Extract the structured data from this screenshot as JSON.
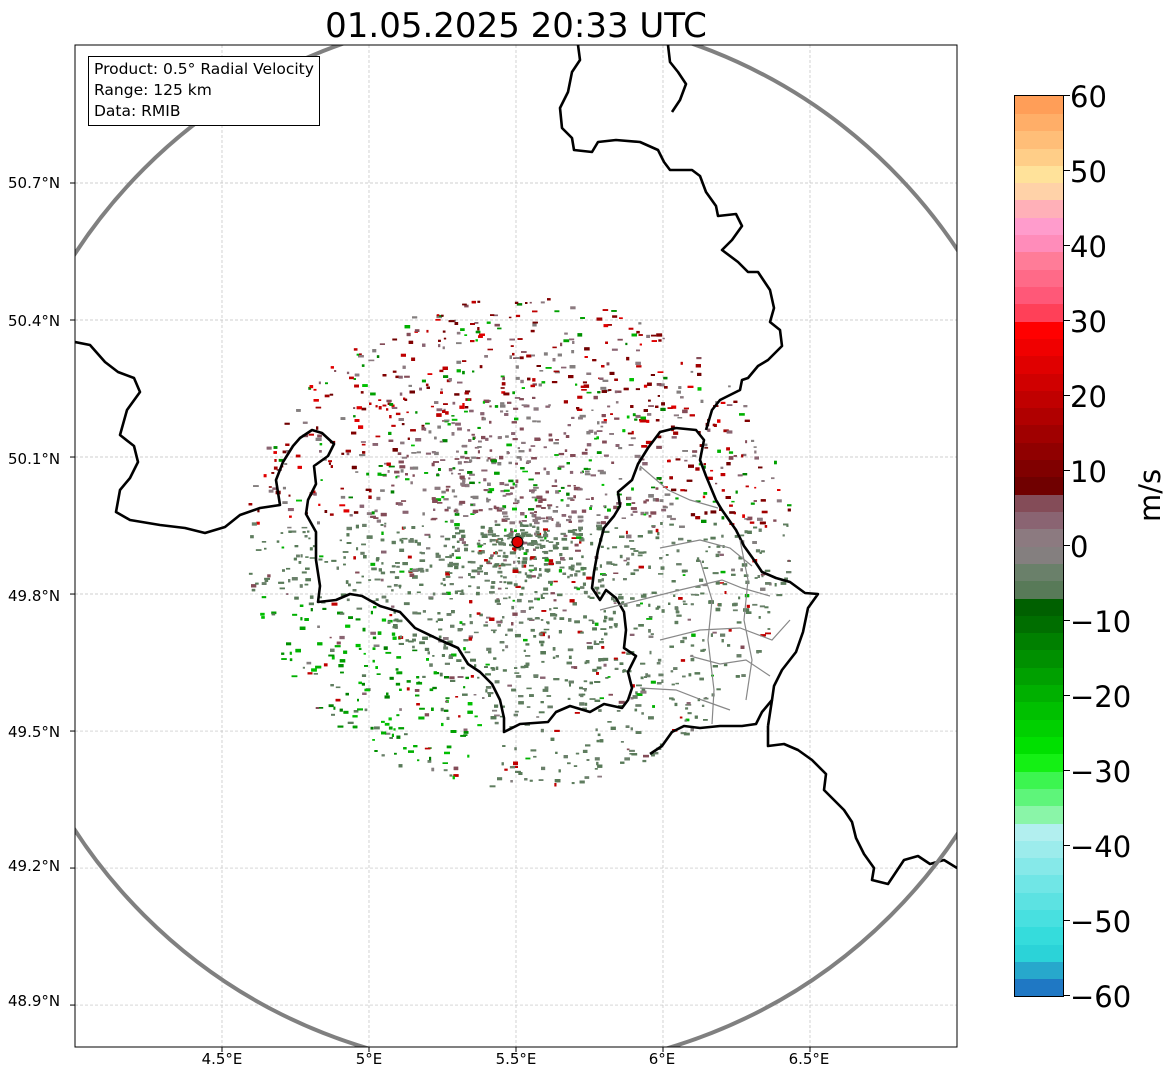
{
  "title": "01.05.2025 20:33 UTC",
  "info": {
    "product": "Product: 0.5° Radial Velocity",
    "range": "Range: 125 km",
    "data": "Data: RMIB"
  },
  "axes": {
    "lat_labels": [
      "50.7°N",
      "50.4°N",
      "50.1°N",
      "49.8°N",
      "49.5°N",
      "49.2°N",
      "48.9°N"
    ],
    "lon_labels": [
      "4.5°E",
      "5°E",
      "5.5°E",
      "6°E",
      "6.5°E"
    ],
    "grid": true,
    "lon_range": [
      4.0,
      7.0
    ],
    "lat_range": [
      48.8,
      50.98
    ]
  },
  "radar": {
    "lon": 5.505,
    "lat": 49.914,
    "range_km": 125,
    "marker_color": "#e00000"
  },
  "colorbar": {
    "unit": "m/s",
    "range": [
      -60,
      60
    ],
    "tick_labels": [
      "60",
      "50",
      "40",
      "30",
      "20",
      "10",
      "0",
      "−10",
      "−20",
      "−30",
      "−40",
      "−50",
      "−60"
    ],
    "colors": [
      "#1f78c4",
      "#27a8cc",
      "#2bd3d8",
      "#35dcdc",
      "#48e0e0",
      "#5ce2e2",
      "#70e6e6",
      "#86e9e9",
      "#9cecec",
      "#b2efef",
      "#8af5a8",
      "#5ef57a",
      "#3cf550",
      "#14f014",
      "#00e000",
      "#00d000",
      "#00c000",
      "#00b000",
      "#00a000",
      "#009000",
      "#008000",
      "#006e00",
      "#006000",
      "#587a58",
      "#6a806a",
      "#847f7f",
      "#8c7a80",
      "#8a6472",
      "#844c58",
      "#700000",
      "#800000",
      "#900000",
      "#a00000",
      "#b00000",
      "#c00000",
      "#d00000",
      "#e00000",
      "#f00000",
      "#ff0000",
      "#ff4058",
      "#ff5878",
      "#ff6a88",
      "#ff7c98",
      "#ff8cba",
      "#ff9ccc",
      "#ffb0b8",
      "#ffd2a8",
      "#ffe29a",
      "#ffce88",
      "#ffbe78",
      "#ffae68",
      "#ff9e58"
    ]
  }
}
